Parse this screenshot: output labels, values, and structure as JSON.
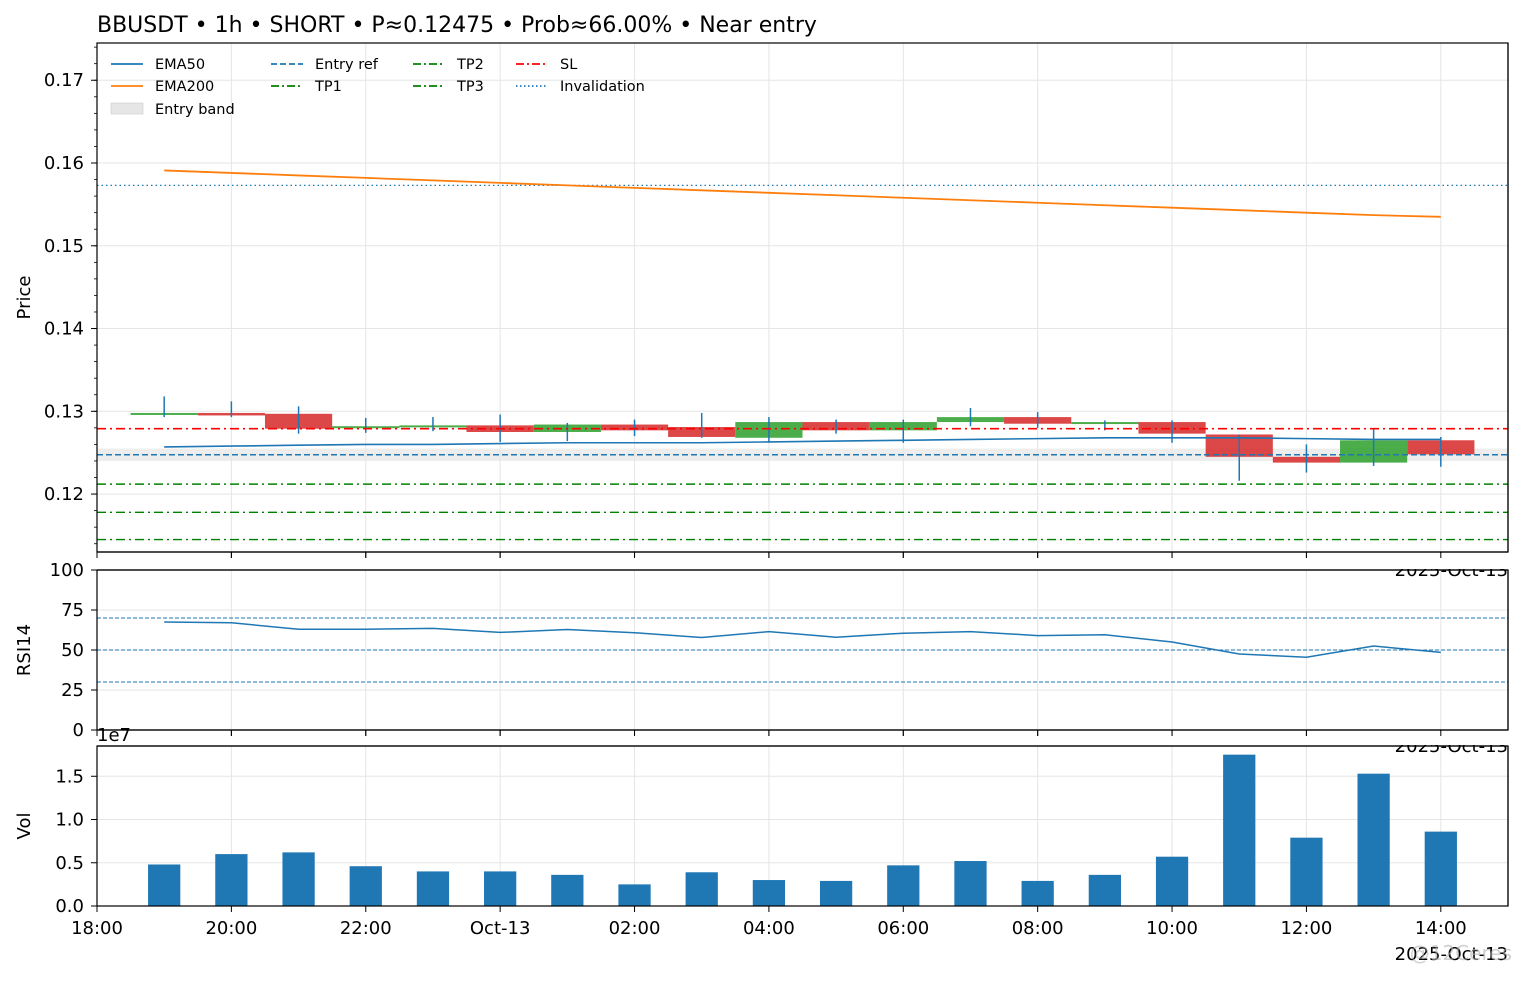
{
  "chart_data": {
    "title": "BBUSDT • 1h • SHORT • P≈0.12475 • Prob≈66.00% • Near entry",
    "type": "candlestick",
    "time_axis": {
      "start": "2025-10-12 18:00",
      "end": "2025-10-13 15:00",
      "tick_labels": [
        "18:00",
        "20:00",
        "22:00",
        "Oct-13",
        "02:00",
        "04:00",
        "06:00",
        "08:00",
        "10:00",
        "12:00",
        "14:00"
      ],
      "offset_label": "2025-Oct-13"
    },
    "candles": [
      {
        "time": "2025-10-12 19:00",
        "open": 0.1298,
        "high": 0.1318,
        "low": 0.1293,
        "close": 0.1298
      },
      {
        "time": "2025-10-12 20:00",
        "open": 0.1298,
        "high": 0.1312,
        "low": 0.1293,
        "close": 0.1295
      },
      {
        "time": "2025-10-12 21:00",
        "open": 0.1297,
        "high": 0.1306,
        "low": 0.1273,
        "close": 0.1279
      },
      {
        "time": "2025-10-12 22:00",
        "open": 0.128,
        "high": 0.1292,
        "low": 0.1274,
        "close": 0.1282
      },
      {
        "time": "2025-10-12 23:00",
        "open": 0.1282,
        "high": 0.1293,
        "low": 0.1276,
        "close": 0.1283
      },
      {
        "time": "2025-10-13 00:00",
        "open": 0.1283,
        "high": 0.1296,
        "low": 0.1263,
        "close": 0.1275
      },
      {
        "time": "2025-10-13 01:00",
        "open": 0.1275,
        "high": 0.1286,
        "low": 0.1264,
        "close": 0.1284
      },
      {
        "time": "2025-10-13 02:00",
        "open": 0.1284,
        "high": 0.129,
        "low": 0.127,
        "close": 0.1277
      },
      {
        "time": "2025-10-13 03:00",
        "open": 0.1281,
        "high": 0.1298,
        "low": 0.1268,
        "close": 0.1269
      },
      {
        "time": "2025-10-13 04:00",
        "open": 0.1268,
        "high": 0.1293,
        "low": 0.1262,
        "close": 0.1287
      },
      {
        "time": "2025-10-13 05:00",
        "open": 0.1287,
        "high": 0.129,
        "low": 0.1273,
        "close": 0.1277
      },
      {
        "time": "2025-10-13 06:00",
        "open": 0.1277,
        "high": 0.129,
        "low": 0.1262,
        "close": 0.1287
      },
      {
        "time": "2025-10-13 07:00",
        "open": 0.1287,
        "high": 0.1304,
        "low": 0.1282,
        "close": 0.1293
      },
      {
        "time": "2025-10-13 08:00",
        "open": 0.1293,
        "high": 0.1299,
        "low": 0.128,
        "close": 0.1285
      },
      {
        "time": "2025-10-13 09:00",
        "open": 0.1285,
        "high": 0.1289,
        "low": 0.1277,
        "close": 0.1287
      },
      {
        "time": "2025-10-13 10:00",
        "open": 0.1287,
        "high": 0.1289,
        "low": 0.1262,
        "close": 0.1273
      },
      {
        "time": "2025-10-13 11:00",
        "open": 0.1272,
        "high": 0.1272,
        "low": 0.1216,
        "close": 0.1245
      },
      {
        "time": "2025-10-13 12:00",
        "open": 0.1245,
        "high": 0.126,
        "low": 0.1226,
        "close": 0.1238
      },
      {
        "time": "2025-10-13 13:00",
        "open": 0.1238,
        "high": 0.1278,
        "low": 0.1234,
        "close": 0.1265
      },
      {
        "time": "2025-10-13 14:00",
        "open": 0.1265,
        "high": 0.1269,
        "low": 0.1233,
        "close": 0.1248
      }
    ],
    "ema50": [
      0.1257,
      0.1258,
      0.1259,
      0.126,
      0.126,
      0.1261,
      0.1262,
      0.1262,
      0.1262,
      0.1263,
      0.1264,
      0.1265,
      0.1266,
      0.1267,
      0.1268,
      0.1268,
      0.1268,
      0.1267,
      0.1266,
      0.1266
    ],
    "ema200": [
      0.1591,
      0.1588,
      0.1585,
      0.1582,
      0.1579,
      0.1576,
      0.1573,
      0.157,
      0.1567,
      0.1564,
      0.1561,
      0.1558,
      0.1555,
      0.1552,
      0.1549,
      0.1546,
      0.1543,
      0.154,
      0.1537,
      0.1535
    ],
    "levels": {
      "entry_ref": 0.12475,
      "entry_band": [
        0.124,
        0.1255
      ],
      "tp1": 0.1212,
      "tp2": 0.1178,
      "tp3": 0.1145,
      "sl": 0.1279,
      "invalidation": 0.1573
    },
    "price_panel": {
      "ylabel": "Price",
      "ylim": [
        0.113,
        0.1745
      ],
      "yticks": [
        0.12,
        0.13,
        0.14,
        0.15,
        0.16,
        0.17
      ]
    },
    "rsi_panel": {
      "ylabel": "RSI14",
      "ylim": [
        0,
        100
      ],
      "yticks": [
        0,
        25,
        50,
        75,
        100
      ],
      "ref_lines": [
        70,
        50,
        30
      ],
      "values": [
        67.5,
        67,
        63,
        63,
        63.5,
        61,
        62.8,
        60.8,
        57.8,
        61.5,
        58,
        60.5,
        61.5,
        59,
        59.5,
        55,
        47.5,
        45.5,
        52.5,
        48.5
      ]
    },
    "volume_panel": {
      "ylabel": "Vol",
      "scale_label": "1e7",
      "ylim": [
        0,
        1.85
      ],
      "yticks": [
        0.0,
        0.5,
        1.0,
        1.5
      ],
      "values": [
        0.48,
        0.6,
        0.62,
        0.46,
        0.4,
        0.4,
        0.36,
        0.25,
        0.39,
        0.3,
        0.29,
        0.47,
        0.52,
        0.29,
        0.36,
        0.57,
        1.75,
        0.79,
        1.53,
        0.86
      ]
    },
    "legend": {
      "placement": "upper-left",
      "entries": [
        {
          "label": "EMA50",
          "color": "#1f77b4",
          "style": "solid"
        },
        {
          "label": "EMA200",
          "color": "#ff7f0e",
          "style": "solid"
        },
        {
          "label": "Entry band",
          "color": "#e6e6e6",
          "style": "patch"
        },
        {
          "label": "Entry ref",
          "color": "#1f77b4",
          "style": "dashed"
        },
        {
          "label": "TP1",
          "color": "#008000",
          "style": "dashdot"
        },
        {
          "label": "TP2",
          "color": "#008000",
          "style": "dashdot"
        },
        {
          "label": "TP3",
          "color": "#008000",
          "style": "dashdot"
        },
        {
          "label": "SL",
          "color": "#ff0000",
          "style": "dashdot"
        },
        {
          "label": "Invalidation",
          "color": "#1f77b4",
          "style": "dotted"
        }
      ]
    },
    "colors": {
      "up": "#2ca02c",
      "down": "#d62728",
      "wick": "#1f77b4",
      "volume": "#1f77b4",
      "rsi": "#1f77b4",
      "grid": "#e5e5e5"
    },
    "grid": true
  },
  "watermark_text": "@12Ceres"
}
